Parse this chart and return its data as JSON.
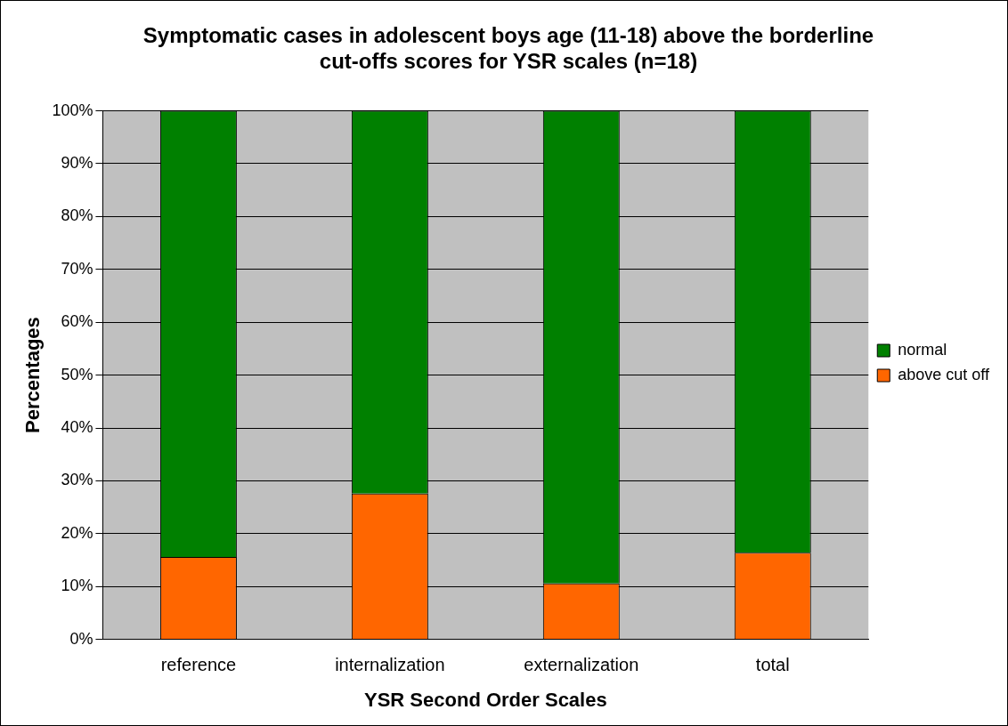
{
  "chart_data": {
    "type": "bar",
    "title": "Symptomatic cases in adolescent boys age (11-18) above the borderline cut-offs scores for YSR scales (n=18)",
    "xlabel": "YSR Second Order Scales",
    "ylabel": "Percentages",
    "categories": [
      "reference",
      "internalization",
      "externalization",
      "total"
    ],
    "stacked": true,
    "series": [
      {
        "name": "above cut off",
        "color": "#ff6600",
        "values": [
          15.6,
          27.6,
          10.6,
          16.4
        ]
      },
      {
        "name": "normal",
        "color": "#008000",
        "values": [
          84.4,
          72.4,
          89.4,
          83.6
        ]
      }
    ],
    "ylim": [
      0,
      100
    ],
    "yticks": [
      {
        "value": 0,
        "label": "0%"
      },
      {
        "value": 10,
        "label": "10%"
      },
      {
        "value": 20,
        "label": "20%"
      },
      {
        "value": 30,
        "label": "30%"
      },
      {
        "value": 40,
        "label": "40%"
      },
      {
        "value": 50,
        "label": "50%"
      },
      {
        "value": 60,
        "label": "60%"
      },
      {
        "value": 70,
        "label": "70%"
      },
      {
        "value": 80,
        "label": "80%"
      },
      {
        "value": 90,
        "label": "90%"
      },
      {
        "value": 100,
        "label": "100%"
      }
    ],
    "grid": "y",
    "legend": "right"
  }
}
